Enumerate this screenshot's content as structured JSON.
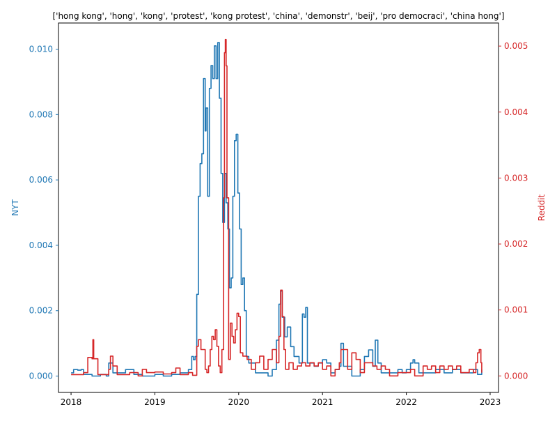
{
  "chart_data": {
    "type": "line",
    "title": "['hong kong', 'hong', 'kong', 'protest', 'kong protest', 'china', 'demonstr', 'beij', 'pro democraci', 'china hong']",
    "xlabel": "",
    "x_ticks": [
      "2018",
      "2019",
      "2020",
      "2021",
      "2022",
      "2023"
    ],
    "xlim": [
      2017.85,
      2023.1
    ],
    "left_axis": {
      "label": "NYT",
      "color": "#1f77b4",
      "ylim": [
        -0.0005,
        0.0108
      ],
      "ticks": [
        "0.000",
        "0.002",
        "0.004",
        "0.006",
        "0.008",
        "0.010"
      ]
    },
    "right_axis": {
      "label": "Reddit",
      "color": "#d62728",
      "ylim": [
        -0.00025,
        0.00535
      ],
      "ticks": [
        "0.000",
        "0.001",
        "0.002",
        "0.003",
        "0.004",
        "0.005"
      ]
    },
    "grid": false,
    "series": [
      {
        "name": "NYT",
        "axis": "left",
        "color": "#1f77b4",
        "points": [
          [
            2018.0,
            0.0001
          ],
          [
            2018.03,
            0.0002
          ],
          [
            2018.08,
            0.00018
          ],
          [
            2018.12,
            0.0002
          ],
          [
            2018.15,
            5e-05
          ],
          [
            2018.25,
            0.0
          ],
          [
            2018.35,
            5e-05
          ],
          [
            2018.42,
            0.0
          ],
          [
            2018.45,
            0.0004
          ],
          [
            2018.5,
            0.0001
          ],
          [
            2018.6,
            0.0001
          ],
          [
            2018.65,
            0.0002
          ],
          [
            2018.75,
            5e-05
          ],
          [
            2018.85,
            0.0
          ],
          [
            2019.0,
            5e-05
          ],
          [
            2019.1,
            0.0
          ],
          [
            2019.2,
            5e-05
          ],
          [
            2019.3,
            0.0001
          ],
          [
            2019.4,
            0.0002
          ],
          [
            2019.44,
            0.0006
          ],
          [
            2019.46,
            0.0005
          ],
          [
            2019.48,
            0.0006
          ],
          [
            2019.5,
            0.0025
          ],
          [
            2019.52,
            0.0055
          ],
          [
            2019.54,
            0.0065
          ],
          [
            2019.56,
            0.0068
          ],
          [
            2019.58,
            0.0091
          ],
          [
            2019.6,
            0.0075
          ],
          [
            2019.61,
            0.0082
          ],
          [
            2019.63,
            0.0055
          ],
          [
            2019.65,
            0.0088
          ],
          [
            2019.67,
            0.0095
          ],
          [
            2019.69,
            0.0091
          ],
          [
            2019.71,
            0.0101
          ],
          [
            2019.73,
            0.0091
          ],
          [
            2019.75,
            0.0102
          ],
          [
            2019.77,
            0.0085
          ],
          [
            2019.79,
            0.0062
          ],
          [
            2019.81,
            0.0047
          ],
          [
            2019.83,
            0.0062
          ],
          [
            2019.85,
            0.0053
          ],
          [
            2019.87,
            0.0045
          ],
          [
            2019.89,
            0.0027
          ],
          [
            2019.91,
            0.003
          ],
          [
            2019.93,
            0.0055
          ],
          [
            2019.95,
            0.0072
          ],
          [
            2019.97,
            0.0074
          ],
          [
            2019.99,
            0.0056
          ],
          [
            2020.01,
            0.0045
          ],
          [
            2020.03,
            0.0028
          ],
          [
            2020.05,
            0.003
          ],
          [
            2020.07,
            0.002
          ],
          [
            2020.09,
            0.0006
          ],
          [
            2020.12,
            0.0004
          ],
          [
            2020.2,
            0.0001
          ],
          [
            2020.3,
            0.0001
          ],
          [
            2020.35,
            0.0
          ],
          [
            2020.4,
            0.0002
          ],
          [
            2020.45,
            0.0011
          ],
          [
            2020.48,
            0.0022
          ],
          [
            2020.5,
            0.0026
          ],
          [
            2020.52,
            0.0018
          ],
          [
            2020.55,
            0.0012
          ],
          [
            2020.58,
            0.0015
          ],
          [
            2020.62,
            0.0009
          ],
          [
            2020.66,
            0.0006
          ],
          [
            2020.72,
            0.0004
          ],
          [
            2020.76,
            0.0019
          ],
          [
            2020.78,
            0.0018
          ],
          [
            2020.8,
            0.0021
          ],
          [
            2020.82,
            0.0004
          ],
          [
            2020.9,
            0.0003
          ],
          [
            2020.95,
            0.0004
          ],
          [
            2021.0,
            0.0005
          ],
          [
            2021.05,
            0.0004
          ],
          [
            2021.1,
            0.0001
          ],
          [
            2021.15,
            0.0002
          ],
          [
            2021.2,
            0.0003
          ],
          [
            2021.22,
            0.001
          ],
          [
            2021.25,
            0.0003
          ],
          [
            2021.3,
            0.0003
          ],
          [
            2021.35,
            0.0
          ],
          [
            2021.45,
            0.0002
          ],
          [
            2021.5,
            0.0006
          ],
          [
            2021.55,
            0.0008
          ],
          [
            2021.6,
            0.0003
          ],
          [
            2021.63,
            0.0011
          ],
          [
            2021.66,
            0.0004
          ],
          [
            2021.7,
            0.0001
          ],
          [
            2021.8,
            0.0001
          ],
          [
            2021.9,
            0.0002
          ],
          [
            2021.95,
            0.0001
          ],
          [
            2022.0,
            0.0002
          ],
          [
            2022.05,
            0.0004
          ],
          [
            2022.08,
            0.0005
          ],
          [
            2022.1,
            0.0004
          ],
          [
            2022.15,
            0.0001
          ],
          [
            2022.25,
            0.0001
          ],
          [
            2022.35,
            0.0002
          ],
          [
            2022.45,
            0.0001
          ],
          [
            2022.55,
            0.0002
          ],
          [
            2022.65,
            0.0001
          ],
          [
            2022.75,
            0.0001
          ],
          [
            2022.8,
            0.0002
          ],
          [
            2022.85,
            5e-05
          ],
          [
            2022.9,
            0.0002
          ]
        ]
      },
      {
        "name": "Reddit",
        "axis": "right",
        "color": "#d62728",
        "points": [
          [
            2018.0,
            2e-05
          ],
          [
            2018.1,
            2e-05
          ],
          [
            2018.15,
            5e-05
          ],
          [
            2018.2,
            0.00028
          ],
          [
            2018.25,
            0.00026
          ],
          [
            2018.26,
            0.00055
          ],
          [
            2018.27,
            0.00026
          ],
          [
            2018.3,
            0.00026
          ],
          [
            2018.32,
            2e-05
          ],
          [
            2018.4,
            2e-05
          ],
          [
            2018.45,
            0.0001
          ],
          [
            2018.47,
            0.0003
          ],
          [
            2018.5,
            0.00015
          ],
          [
            2018.55,
            2e-05
          ],
          [
            2018.7,
            5e-05
          ],
          [
            2018.8,
            0.0
          ],
          [
            2018.85,
            0.0001
          ],
          [
            2018.9,
            5e-05
          ],
          [
            2019.0,
            6e-05
          ],
          [
            2019.1,
            3e-05
          ],
          [
            2019.2,
            5e-05
          ],
          [
            2019.25,
            0.00012
          ],
          [
            2019.3,
            2e-05
          ],
          [
            2019.4,
            5e-05
          ],
          [
            2019.45,
            1e-05
          ],
          [
            2019.5,
            0.00045
          ],
          [
            2019.52,
            0.00055
          ],
          [
            2019.55,
            0.0004
          ],
          [
            2019.6,
            0.0001
          ],
          [
            2019.62,
            5e-05
          ],
          [
            2019.64,
            0.00015
          ],
          [
            2019.66,
            0.0004
          ],
          [
            2019.68,
            0.0006
          ],
          [
            2019.7,
            0.00055
          ],
          [
            2019.72,
            0.0007
          ],
          [
            2019.74,
            0.00045
          ],
          [
            2019.76,
            0.00015
          ],
          [
            2019.78,
            5e-05
          ],
          [
            2019.8,
            0.0004
          ],
          [
            2019.82,
            0.0027
          ],
          [
            2019.83,
            0.0049
          ],
          [
            2019.84,
            0.0051
          ],
          [
            2019.85,
            0.0047
          ],
          [
            2019.86,
            0.0027
          ],
          [
            2019.88,
            0.00025
          ],
          [
            2019.9,
            0.0008
          ],
          [
            2019.92,
            0.0006
          ],
          [
            2019.94,
            0.0005
          ],
          [
            2019.96,
            0.0007
          ],
          [
            2019.98,
            0.00095
          ],
          [
            2020.0,
            0.0009
          ],
          [
            2020.02,
            0.00035
          ],
          [
            2020.05,
            0.0003
          ],
          [
            2020.1,
            0.00025
          ],
          [
            2020.15,
            0.0001
          ],
          [
            2020.2,
            0.0002
          ],
          [
            2020.25,
            0.0003
          ],
          [
            2020.3,
            0.0001
          ],
          [
            2020.35,
            0.00025
          ],
          [
            2020.4,
            0.0004
          ],
          [
            2020.45,
            0.0002
          ],
          [
            2020.48,
            0.0006
          ],
          [
            2020.5,
            0.0013
          ],
          [
            2020.52,
            0.0009
          ],
          [
            2020.54,
            0.0004
          ],
          [
            2020.56,
            0.0001
          ],
          [
            2020.6,
            0.0002
          ],
          [
            2020.65,
            0.0001
          ],
          [
            2020.7,
            0.00015
          ],
          [
            2020.75,
            0.0002
          ],
          [
            2020.8,
            0.00015
          ],
          [
            2020.85,
            0.0002
          ],
          [
            2020.9,
            0.00015
          ],
          [
            2020.95,
            0.0002
          ],
          [
            2021.0,
            0.0001
          ],
          [
            2021.05,
            0.00015
          ],
          [
            2021.1,
            0.0
          ],
          [
            2021.15,
            0.0001
          ],
          [
            2021.2,
            0.0002
          ],
          [
            2021.22,
            0.0004
          ],
          [
            2021.25,
            0.0004
          ],
          [
            2021.3,
            0.0001
          ],
          [
            2021.35,
            0.00035
          ],
          [
            2021.4,
            0.00025
          ],
          [
            2021.45,
            5e-05
          ],
          [
            2021.5,
            0.0002
          ],
          [
            2021.6,
            0.00015
          ],
          [
            2021.65,
            0.0001
          ],
          [
            2021.7,
            0.00015
          ],
          [
            2021.75,
            0.0001
          ],
          [
            2021.8,
            0.0
          ],
          [
            2021.9,
            5e-05
          ],
          [
            2022.0,
            5e-05
          ],
          [
            2022.05,
            0.0001
          ],
          [
            2022.1,
            0.0
          ],
          [
            2022.15,
            0.0
          ],
          [
            2022.2,
            0.00015
          ],
          [
            2022.25,
            0.0001
          ],
          [
            2022.3,
            0.00015
          ],
          [
            2022.35,
            5e-05
          ],
          [
            2022.4,
            0.00015
          ],
          [
            2022.45,
            0.0001
          ],
          [
            2022.5,
            0.00015
          ],
          [
            2022.55,
            0.0001
          ],
          [
            2022.6,
            0.00015
          ],
          [
            2022.65,
            5e-05
          ],
          [
            2022.7,
            5e-05
          ],
          [
            2022.75,
            0.0001
          ],
          [
            2022.8,
            5e-05
          ],
          [
            2022.83,
            0.0002
          ],
          [
            2022.85,
            0.00035
          ],
          [
            2022.87,
            0.0004
          ],
          [
            2022.89,
            0.0002
          ],
          [
            2022.9,
            5e-05
          ]
        ]
      }
    ]
  }
}
